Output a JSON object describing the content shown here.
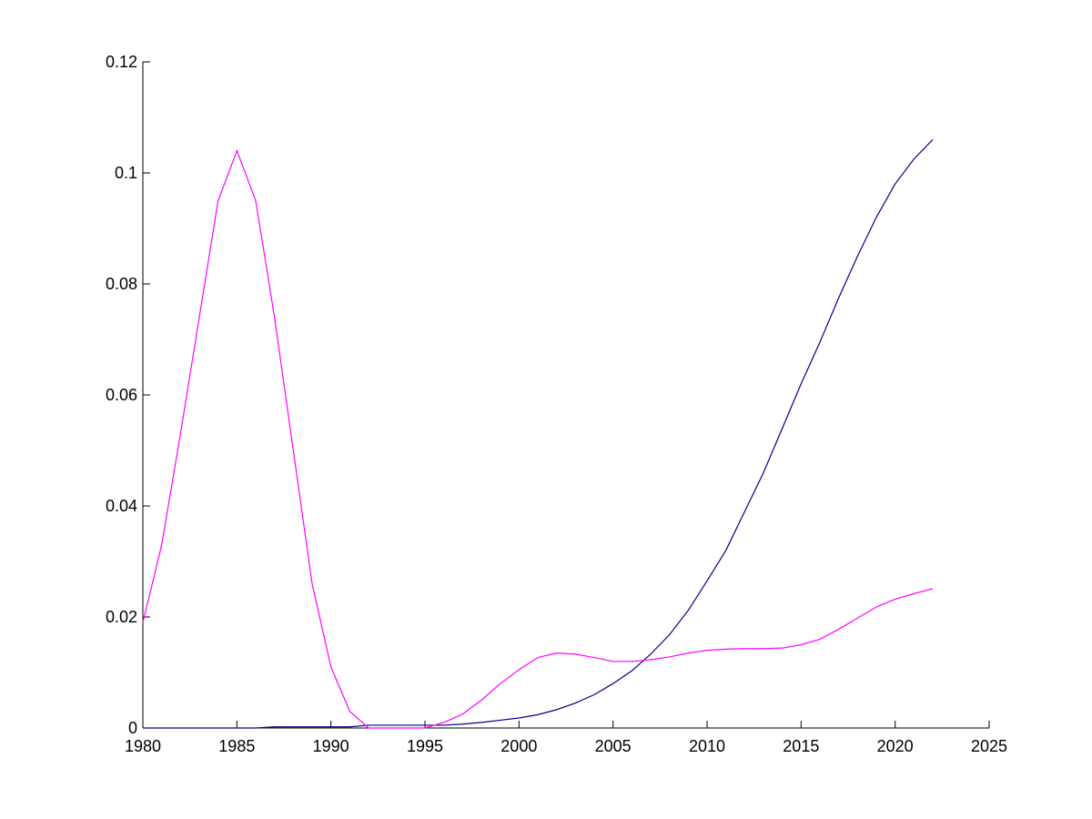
{
  "chart_data": {
    "type": "line",
    "x": [
      1980,
      1981,
      1982,
      1983,
      1984,
      1985,
      1986,
      1987,
      1988,
      1989,
      1990,
      1991,
      1992,
      1993,
      1994,
      1995,
      1996,
      1997,
      1998,
      1999,
      2000,
      2001,
      2002,
      2003,
      2004,
      2005,
      2006,
      2007,
      2008,
      2009,
      2010,
      2011,
      2012,
      2013,
      2014,
      2015,
      2016,
      2017,
      2018,
      2019,
      2020,
      2021,
      2022
    ],
    "series": [
      {
        "color": "#00008b",
        "values": [
          0,
          0,
          0,
          0,
          0,
          0,
          0,
          0.0002,
          0.0002,
          0.0002,
          0.0002,
          0.0002,
          0.0005,
          0.0005,
          0.0005,
          0.0005,
          0.0005,
          0.0007,
          0.001,
          0.0014,
          0.0018,
          0.0024,
          0.0033,
          0.0045,
          0.006,
          0.008,
          0.0103,
          0.0133,
          0.0168,
          0.0212,
          0.0265,
          0.032,
          0.039,
          0.046,
          0.054,
          0.062,
          0.0695,
          0.0775,
          0.085,
          0.092,
          0.098,
          0.1025,
          0.106
        ]
      },
      {
        "color": "#ff00ff",
        "values": [
          0.019,
          0.033,
          0.053,
          0.074,
          0.095,
          0.104,
          0.095,
          0.074,
          0.05,
          0.026,
          0.011,
          0.003,
          0,
          0,
          0,
          0,
          0.001,
          0.0025,
          0.005,
          0.008,
          0.0105,
          0.0127,
          0.0135,
          0.0133,
          0.0127,
          0.012,
          0.012,
          0.0123,
          0.0128,
          0.0135,
          0.014,
          0.0142,
          0.0143,
          0.0143,
          0.0144,
          0.015,
          0.016,
          0.0178,
          0.0198,
          0.0218,
          0.0232,
          0.0242,
          0.0251
        ]
      }
    ],
    "xlim": [
      1980,
      2025
    ],
    "xticks": [
      1980,
      1985,
      1990,
      1995,
      2000,
      2005,
      2010,
      2015,
      2020,
      2025
    ],
    "ylim": [
      0,
      0.12
    ],
    "yticks": [
      0,
      0.02,
      0.04,
      0.06,
      0.08,
      0.1,
      0.12
    ]
  }
}
